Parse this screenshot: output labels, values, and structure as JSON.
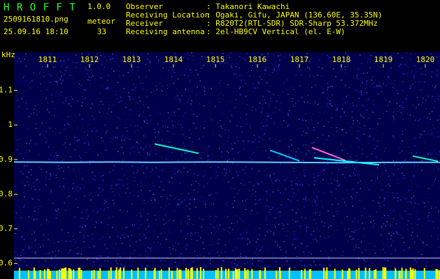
{
  "header": {
    "app": "H R O F F T",
    "version": "1.0.0",
    "file": "2509161810.png",
    "datetime": "25.09.16 18:10",
    "count_label": "meteor",
    "count": "33",
    "fields": [
      {
        "label": "Observer",
        "value": ": Takanori Kawachi"
      },
      {
        "label": "Receiving Location",
        "value": ": Ogaki, Gifu, JAPAN (136.60E, 35.35N)"
      },
      {
        "label": "Receiver",
        "value": ": R820T2(RTL-SDR) SDR-Sharp 53.372MHz"
      },
      {
        "label": "Receiving antenna",
        "value": ": 2el-HB9CV Vertical (el. E-W)"
      }
    ]
  },
  "chart_data": {
    "type": "spectrogram",
    "ylabel": "kHz",
    "xlim": [
      1810.2,
      1820.35
    ],
    "xticks": [
      1811,
      1812,
      1813,
      1814,
      1815,
      1816,
      1817,
      1818,
      1819,
      1820
    ],
    "ylim": [
      0.585,
      1.21
    ],
    "yticks": [
      0.6,
      0.7,
      0.8,
      0.9,
      1.0,
      1.1
    ],
    "traces": [
      {
        "color": "#66ccff",
        "x": [
          1810.2,
          1811.5,
          1812.5,
          1813.5,
          1815.0,
          1816.5,
          1818.0,
          1819.5,
          1820.35
        ],
        "y": [
          0.893,
          0.892,
          0.893,
          0.892,
          0.893,
          0.892,
          0.891,
          0.892,
          0.892
        ]
      },
      {
        "color": "#00ffcc",
        "x": [
          1813.55,
          1814.6
        ],
        "y": [
          0.945,
          0.918
        ]
      },
      {
        "color": "#00ccff",
        "x": [
          1816.3,
          1817.0
        ],
        "y": [
          0.927,
          0.896
        ]
      },
      {
        "color": "#ff66cc",
        "x": [
          1817.3,
          1818.1
        ],
        "y": [
          0.935,
          0.897
        ]
      },
      {
        "color": "#00ffff",
        "x": [
          1817.35,
          1818.9
        ],
        "y": [
          0.905,
          0.885
        ]
      },
      {
        "color": "#00ffcc",
        "x": [
          1819.7,
          1820.3
        ],
        "y": [
          0.91,
          0.895
        ]
      }
    ]
  }
}
